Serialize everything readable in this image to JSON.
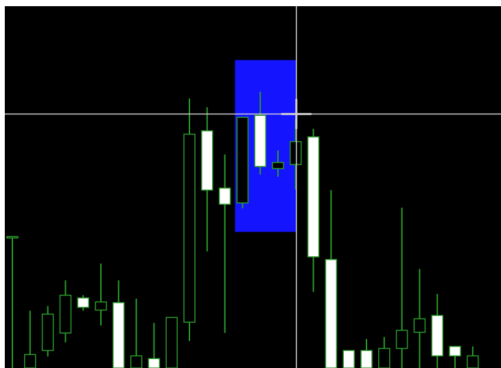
{
  "colors": {
    "background": "#000000",
    "frame": "#ffffff",
    "wick": "#2a9a2a",
    "candle_border": "#2a9a2a",
    "bull_body": "#ffffff",
    "bear_body": "#000000",
    "highlight": "#1414ff",
    "crosshair": "#cfcfcf"
  },
  "chart_data": {
    "type": "candlestick",
    "title": "",
    "xlabel": "",
    "ylabel": "",
    "grid": false,
    "legend": "none",
    "ylim": [
      0,
      537
    ],
    "x_count": 28,
    "candles": [
      {
        "index": 0,
        "open": 195,
        "close": 195,
        "high": 195,
        "low": 0,
        "white": false
      },
      {
        "index": 1,
        "open": 20,
        "close": 0,
        "high": 85,
        "low": 0,
        "white": false
      },
      {
        "index": 2,
        "open": 26,
        "close": 80,
        "high": 92,
        "low": 17,
        "white": false
      },
      {
        "index": 3,
        "open": 52,
        "close": 108,
        "high": 130,
        "low": 38,
        "white": false
      },
      {
        "index": 4,
        "open": 104,
        "close": 90,
        "high": 108,
        "low": 85,
        "white": true
      },
      {
        "index": 5,
        "open": 98,
        "close": 86,
        "high": 155,
        "low": 63,
        "white": false
      },
      {
        "index": 6,
        "open": 97,
        "close": 0,
        "high": 130,
        "low": 0,
        "white": true
      },
      {
        "index": 7,
        "open": 18,
        "close": 0,
        "high": 103,
        "low": 0,
        "white": false
      },
      {
        "index": 8,
        "open": 14,
        "close": 0,
        "high": 67,
        "low": 0,
        "white": true
      },
      {
        "index": 9,
        "open": 75,
        "close": 0,
        "high": 75,
        "low": 0,
        "white": false
      },
      {
        "index": 10,
        "open": 68,
        "close": 347,
        "high": 400,
        "low": 40,
        "white": false
      },
      {
        "index": 11,
        "open": 352,
        "close": 264,
        "high": 387,
        "low": 173,
        "white": true
      },
      {
        "index": 12,
        "open": 267,
        "close": 243,
        "high": 317,
        "low": 52,
        "white": true
      },
      {
        "index": 13,
        "open": 245,
        "close": 372,
        "high": 372,
        "low": 237,
        "white": false
      },
      {
        "index": 14,
        "open": 375,
        "close": 299,
        "high": 410,
        "low": 287,
        "white": true
      },
      {
        "index": 15,
        "open": 305,
        "close": 296,
        "high": 323,
        "low": 284,
        "white": false
      },
      {
        "index": 16,
        "open": 302,
        "close": 336,
        "high": 370,
        "low": 265,
        "white": false
      },
      {
        "index": 17,
        "open": 343,
        "close": 165,
        "high": 355,
        "low": 113,
        "white": true
      },
      {
        "index": 18,
        "open": 161,
        "close": 0,
        "high": 264,
        "low": 0,
        "white": true
      },
      {
        "index": 19,
        "open": 26,
        "close": 0,
        "high": 26,
        "low": 0,
        "white": true
      },
      {
        "index": 20,
        "open": 26,
        "close": 0,
        "high": 43,
        "low": 0,
        "white": true
      },
      {
        "index": 21,
        "open": 0,
        "close": 29,
        "high": 46,
        "low": 0,
        "white": false
      },
      {
        "index": 22,
        "open": 29,
        "close": 56,
        "high": 238,
        "low": 0,
        "white": false
      },
      {
        "index": 23,
        "open": 53,
        "close": 73,
        "high": 147,
        "low": 0,
        "white": false
      },
      {
        "index": 24,
        "open": 78,
        "close": 18,
        "high": 110,
        "low": 0,
        "white": true
      },
      {
        "index": 25,
        "open": 32,
        "close": 18,
        "high": 32,
        "low": 0,
        "white": true
      },
      {
        "index": 26,
        "open": 18,
        "close": 0,
        "high": 32,
        "low": 0,
        "white": false
      }
    ],
    "highlight_range": {
      "from_index": 13,
      "to_index": 16,
      "high": 457,
      "low": 202
    },
    "crosshair": {
      "index": 16,
      "value": 377
    }
  }
}
